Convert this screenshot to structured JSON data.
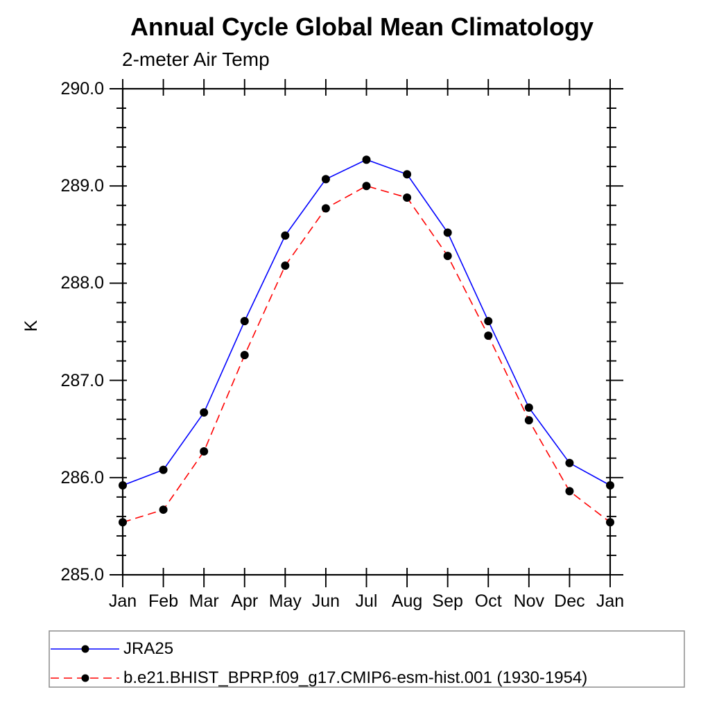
{
  "chart_data": {
    "type": "line",
    "title": "Annual Cycle Global Mean Climatology",
    "subtitle": "2-meter Air Temp",
    "ylabel": "K",
    "xlabel": "",
    "ylim": [
      285.0,
      290.0
    ],
    "y_major_step": 1.0,
    "y_minor_step": 0.2,
    "y_tick_labels": [
      "285.0",
      "286.0",
      "287.0",
      "288.0",
      "289.0",
      "290.0"
    ],
    "grid": false,
    "legend_position": "bottom-left-box",
    "categories": [
      "Jan",
      "Feb",
      "Mar",
      "Apr",
      "May",
      "Jun",
      "Jul",
      "Aug",
      "Sep",
      "Oct",
      "Nov",
      "Dec",
      "Jan"
    ],
    "series": [
      {
        "name": "JRA25",
        "color": "#0000ff",
        "line_style": "solid",
        "marker": "filled-circle",
        "marker_color": "#000000",
        "values": [
          285.92,
          286.08,
          286.67,
          287.61,
          288.49,
          289.07,
          289.27,
          289.12,
          288.52,
          287.61,
          286.72,
          286.15,
          285.92
        ]
      },
      {
        "name": "b.e21.BHIST_BPRP.f09_g17.CMIP6-esm-hist.001 (1930-1954)",
        "color": "#ff0000",
        "line_style": "dashed",
        "marker": "filled-circle",
        "marker_color": "#000000",
        "values": [
          285.54,
          285.67,
          286.27,
          287.26,
          288.18,
          288.77,
          289.0,
          288.88,
          288.28,
          287.46,
          286.59,
          285.86,
          285.54
        ]
      }
    ],
    "colors": {
      "axis": "#000000",
      "background": "#ffffff",
      "legend_border": "#8c8c8c",
      "text": "#000000"
    }
  }
}
